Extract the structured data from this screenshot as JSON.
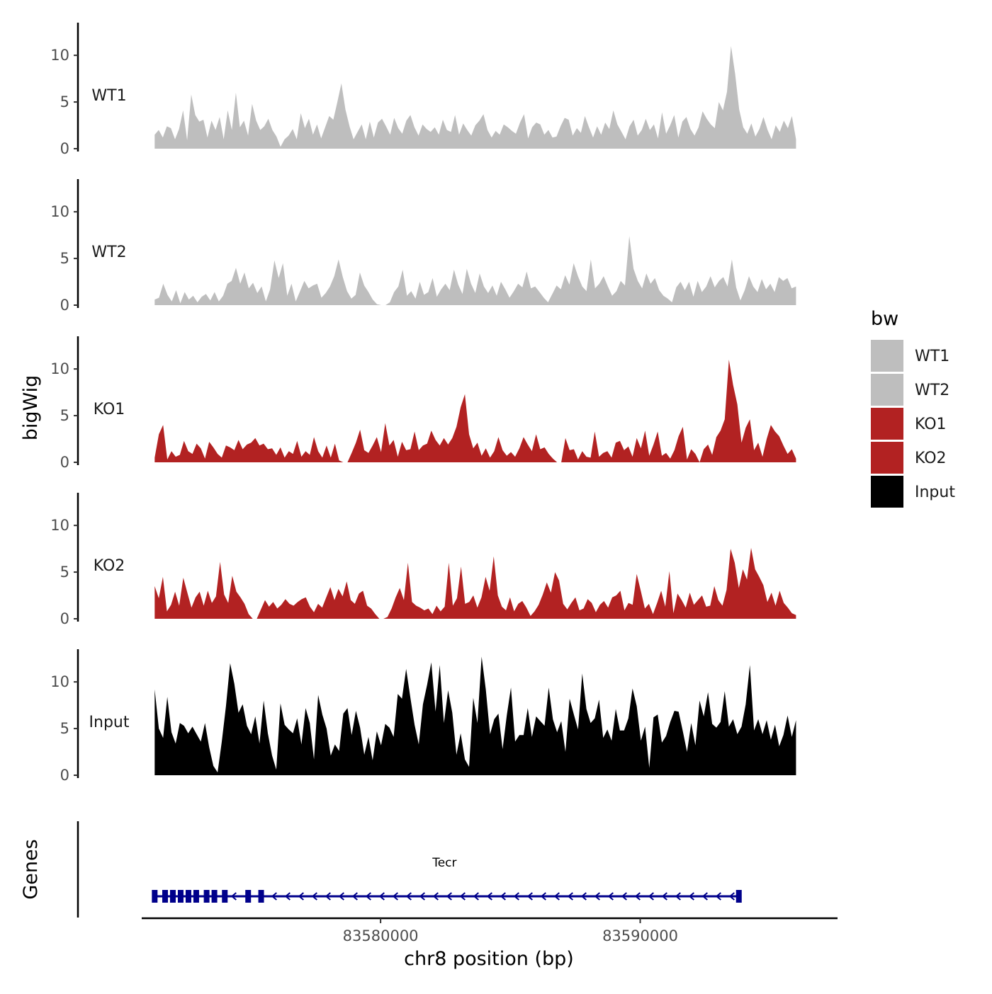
{
  "chart_data": {
    "type": "area",
    "title": "",
    "ylabel": "bigWig",
    "xlabel": "chr8 position (bp)",
    "genes_label": "Genes",
    "xlim": [
      83570800,
      83597600
    ],
    "xticks": [
      83580000,
      83590000
    ],
    "xtick_labels": [
      "83580000",
      "83590000"
    ],
    "ylim": [
      0,
      13.5
    ],
    "yticks": [
      0,
      5,
      10
    ],
    "ytick_labels": [
      "0",
      "5",
      "10"
    ],
    "x_start": 83571300,
    "x_end": 83596000,
    "legend": {
      "title": "bw",
      "position": "right",
      "entries": [
        {
          "label": "WT1",
          "color": "#bebebe"
        },
        {
          "label": "WT2",
          "color": "#bebebe"
        },
        {
          "label": "KO1",
          "color": "#b22222"
        },
        {
          "label": "KO2",
          "color": "#b22222"
        },
        {
          "label": "Input",
          "color": "#000000"
        }
      ]
    },
    "series": [
      {
        "name": "WT1",
        "color": "#bebebe",
        "values": [
          1.5,
          2.0,
          1.2,
          2.4,
          2.2,
          1.0,
          2.1,
          4.1,
          0.9,
          5.8,
          3.6,
          2.9,
          3.1,
          1.2,
          3.0,
          2.0,
          3.4,
          1.0,
          4.1,
          2.0,
          6.0,
          2.3,
          3.0,
          1.4,
          4.8,
          3.0,
          2.0,
          2.4,
          3.2,
          2.0,
          1.3,
          0.2,
          1.0,
          1.4,
          2.1,
          1.0,
          3.8,
          2.2,
          3.2,
          1.5,
          2.6,
          1.1,
          2.3,
          3.5,
          3.1,
          5.0,
          7.0,
          4.2,
          2.4,
          1.0,
          1.8,
          2.6,
          1.0,
          2.9,
          1.2,
          2.8,
          3.2,
          2.4,
          1.5,
          3.3,
          2.2,
          1.6,
          3.0,
          3.6,
          2.3,
          1.4,
          2.6,
          2.1,
          1.8,
          2.3,
          1.5,
          3.1,
          2.0,
          1.8,
          3.6,
          1.5,
          2.7,
          2.0,
          1.4,
          2.5,
          3.0,
          3.7,
          2.0,
          1.2,
          1.9,
          1.5,
          2.6,
          2.3,
          1.9,
          1.6,
          2.8,
          3.7,
          1.1,
          2.3,
          2.8,
          2.6,
          1.5,
          2.0,
          1.2,
          1.3,
          2.4,
          3.3,
          3.1,
          1.4,
          2.2,
          1.7,
          3.5,
          2.3,
          1.2,
          2.4,
          1.5,
          2.8,
          2.1,
          4.1,
          2.6,
          1.8,
          1.0,
          2.4,
          3.1,
          1.4,
          2.0,
          3.2,
          2.0,
          2.6,
          1.1,
          3.9,
          1.6,
          2.5,
          3.6,
          1.2,
          2.9,
          3.4,
          2.1,
          1.4,
          2.3,
          4.0,
          3.2,
          2.6,
          2.2,
          5.0,
          4.1,
          6.1,
          11.0,
          8.0,
          4.2,
          2.3,
          1.6,
          2.7,
          1.3,
          2.1,
          3.4,
          2.0,
          1.0,
          2.5,
          1.8,
          3.0,
          2.2,
          3.5,
          1.0
        ]
      },
      {
        "name": "WT2",
        "color": "#bebebe",
        "values": [
          0.6,
          0.8,
          2.3,
          1.1,
          0.4,
          1.6,
          0.2,
          1.4,
          0.6,
          1.0,
          0.3,
          0.9,
          1.2,
          0.5,
          1.4,
          0.4,
          1.0,
          2.3,
          2.6,
          4.0,
          2.3,
          3.5,
          1.8,
          2.4,
          1.3,
          2.0,
          0.4,
          1.7,
          4.8,
          2.9,
          4.5,
          1.0,
          2.3,
          0.4,
          1.5,
          2.6,
          1.8,
          2.1,
          2.3,
          0.8,
          1.3,
          2.0,
          3.1,
          4.9,
          3.0,
          1.5,
          0.7,
          1.1,
          3.5,
          2.1,
          1.4,
          0.6,
          0.1,
          0.0,
          0.0,
          0.3,
          1.4,
          2.0,
          3.8,
          1.0,
          1.5,
          0.7,
          2.5,
          1.1,
          1.4,
          2.9,
          0.9,
          1.7,
          2.3,
          1.6,
          3.8,
          2.2,
          1.2,
          3.9,
          2.3,
          1.3,
          3.4,
          2.0,
          1.3,
          2.1,
          1.0,
          2.5,
          1.7,
          0.8,
          1.5,
          2.3,
          1.9,
          3.6,
          1.8,
          2.0,
          1.4,
          0.8,
          0.3,
          1.2,
          2.1,
          1.7,
          3.2,
          2.2,
          4.5,
          3.1,
          2.0,
          1.5,
          4.9,
          1.8,
          2.3,
          3.1,
          2.0,
          1.0,
          1.5,
          2.6,
          2.1,
          7.4,
          3.9,
          2.6,
          1.8,
          3.4,
          2.3,
          2.9,
          1.6,
          1.0,
          0.7,
          0.3,
          1.9,
          2.5,
          1.6,
          2.5,
          0.9,
          2.6,
          1.4,
          2.0,
          3.1,
          1.9,
          2.6,
          3.0,
          2.0,
          4.9,
          1.9,
          0.5,
          1.6,
          3.1,
          2.0,
          1.4,
          2.8,
          1.7,
          2.3,
          1.4,
          3.0,
          2.6,
          2.9,
          1.8,
          2.0
        ]
      },
      {
        "name": "KO1",
        "color": "#b22222",
        "values": [
          0.5,
          3.0,
          4.0,
          0.3,
          1.2,
          0.6,
          0.8,
          2.3,
          1.2,
          0.9,
          2.0,
          1.5,
          0.4,
          2.2,
          1.6,
          0.9,
          0.5,
          1.8,
          1.6,
          1.3,
          2.4,
          1.4,
          1.9,
          2.1,
          2.6,
          1.8,
          2.0,
          1.4,
          1.5,
          0.8,
          1.6,
          0.5,
          1.2,
          0.9,
          2.3,
          0.6,
          1.2,
          0.8,
          2.7,
          1.2,
          0.5,
          1.8,
          0.5,
          2.0,
          0.2,
          0.0,
          0.0,
          1.0,
          2.1,
          3.5,
          1.3,
          1.0,
          1.8,
          2.7,
          1.1,
          4.2,
          1.8,
          2.4,
          0.6,
          2.2,
          1.3,
          1.4,
          3.3,
          1.3,
          1.8,
          2.0,
          3.4,
          2.4,
          1.8,
          2.6,
          1.9,
          2.6,
          3.8,
          5.9,
          7.3,
          3.0,
          1.5,
          2.1,
          0.7,
          1.5,
          0.5,
          1.2,
          2.7,
          1.3,
          0.7,
          1.1,
          0.6,
          1.5,
          2.7,
          1.9,
          1.2,
          3.0,
          1.4,
          1.6,
          0.9,
          0.4,
          0.0,
          0.0,
          2.6,
          1.3,
          1.4,
          0.3,
          1.2,
          0.6,
          0.5,
          3.3,
          0.6,
          1.0,
          1.2,
          0.5,
          2.1,
          2.3,
          1.3,
          1.7,
          0.6,
          2.6,
          1.5,
          3.4,
          0.7,
          1.9,
          3.3,
          0.7,
          1.0,
          0.4,
          1.3,
          2.8,
          3.8,
          0.3,
          1.4,
          0.9,
          0.0,
          1.4,
          1.9,
          0.8,
          2.7,
          3.4,
          4.6,
          11.0,
          8.3,
          6.2,
          2.1,
          3.7,
          4.6,
          1.3,
          2.1,
          0.6,
          2.5,
          4.0,
          3.3,
          2.8,
          1.8,
          0.9,
          1.4,
          0.4
        ]
      },
      {
        "name": "KO2",
        "color": "#b22222",
        "values": [
          3.5,
          2.2,
          4.5,
          0.8,
          1.5,
          2.9,
          1.4,
          4.4,
          2.8,
          1.2,
          2.3,
          2.9,
          1.4,
          3.0,
          1.7,
          2.4,
          6.1,
          2.6,
          1.7,
          4.6,
          2.9,
          2.3,
          1.6,
          0.5,
          0.0,
          0.0,
          1.0,
          2.0,
          1.3,
          1.8,
          1.1,
          1.5,
          2.1,
          1.6,
          1.4,
          1.8,
          2.1,
          2.3,
          1.3,
          0.7,
          1.6,
          1.2,
          2.3,
          3.4,
          2.0,
          3.2,
          2.4,
          4.0,
          2.0,
          1.6,
          2.7,
          3.0,
          1.4,
          1.1,
          0.5,
          0.0,
          0.0,
          0.2,
          1.1,
          2.3,
          3.3,
          2.0,
          6.0,
          1.8,
          1.4,
          1.2,
          0.9,
          1.1,
          0.5,
          1.4,
          0.8,
          1.3,
          6.0,
          1.4,
          2.2,
          5.6,
          1.6,
          1.8,
          2.5,
          1.2,
          2.3,
          4.5,
          3.0,
          6.7,
          2.5,
          1.3,
          0.9,
          2.3,
          0.8,
          1.6,
          1.9,
          1.2,
          0.3,
          0.8,
          1.5,
          2.6,
          3.9,
          2.8,
          5.0,
          4.1,
          1.6,
          1.0,
          1.7,
          2.3,
          0.9,
          1.1,
          2.1,
          1.7,
          0.7,
          1.5,
          1.9,
          1.2,
          2.3,
          2.5,
          3.0,
          0.9,
          1.7,
          1.5,
          4.8,
          3.0,
          1.1,
          1.6,
          0.5,
          1.7,
          3.0,
          1.3,
          5.1,
          0.6,
          2.7,
          2.0,
          1.2,
          2.8,
          1.5,
          2.0,
          2.5,
          1.3,
          1.4,
          3.5,
          2.0,
          1.4,
          3.1,
          7.5,
          6.0,
          3.3,
          5.3,
          4.2,
          7.6,
          5.3,
          4.5,
          3.6,
          1.8,
          2.8,
          1.4,
          3.0,
          1.7,
          1.2,
          0.6,
          0.4
        ]
      },
      {
        "name": "Input",
        "color": "#000000",
        "values": [
          9.2,
          5.0,
          4.0,
          8.4,
          4.6,
          3.4,
          5.6,
          5.3,
          4.5,
          5.2,
          4.4,
          3.6,
          5.6,
          3.0,
          1.0,
          0.3,
          3.6,
          7.4,
          12.0,
          9.8,
          6.7,
          7.6,
          5.3,
          4.4,
          6.3,
          3.4,
          8.0,
          4.5,
          2.1,
          0.6,
          7.7,
          5.4,
          4.9,
          4.5,
          6.1,
          3.3,
          7.2,
          5.6,
          1.7,
          8.6,
          6.5,
          5.0,
          2.1,
          3.3,
          2.6,
          6.6,
          7.2,
          4.3,
          6.9,
          5.1,
          2.2,
          4.1,
          1.6,
          4.7,
          3.2,
          5.5,
          5.1,
          4.1,
          8.7,
          8.2,
          11.4,
          8.3,
          5.4,
          3.3,
          7.6,
          9.7,
          12.1,
          6.8,
          11.8,
          5.6,
          9.1,
          6.7,
          2.2,
          4.5,
          1.7,
          0.9,
          8.3,
          5.6,
          12.7,
          9.2,
          4.4,
          6.0,
          6.6,
          2.8,
          6.4,
          9.4,
          3.6,
          4.3,
          4.3,
          7.2,
          4.1,
          6.3,
          5.8,
          5.3,
          9.4,
          6.0,
          4.6,
          5.8,
          2.5,
          8.2,
          6.5,
          4.9,
          10.9,
          7.1,
          5.6,
          6.1,
          8.1,
          4.0,
          4.9,
          3.7,
          7.1,
          4.8,
          4.8,
          6.1,
          9.3,
          7.4,
          3.7,
          5.2,
          0.8,
          6.2,
          6.5,
          3.5,
          4.2,
          5.7,
          6.9,
          6.8,
          4.7,
          2.5,
          5.6,
          3.2,
          8.0,
          6.3,
          8.9,
          5.5,
          5.1,
          5.7,
          9.0,
          5.2,
          6.0,
          4.4,
          5.2,
          7.6,
          11.8,
          4.8,
          6.0,
          4.4,
          5.9,
          3.8,
          5.4,
          3.1,
          4.3,
          6.4,
          4.1,
          5.9
        ]
      }
    ],
    "genes": [
      {
        "name": "Tecr",
        "start": 83571300,
        "end": 83593900,
        "strand": "-",
        "color": "#00008b",
        "exons": [
          83571300,
          83571700,
          83572000,
          83572300,
          83572600,
          83572900,
          83573300,
          83573600,
          83574000,
          83574900,
          83575400,
          83593800
        ]
      }
    ]
  }
}
